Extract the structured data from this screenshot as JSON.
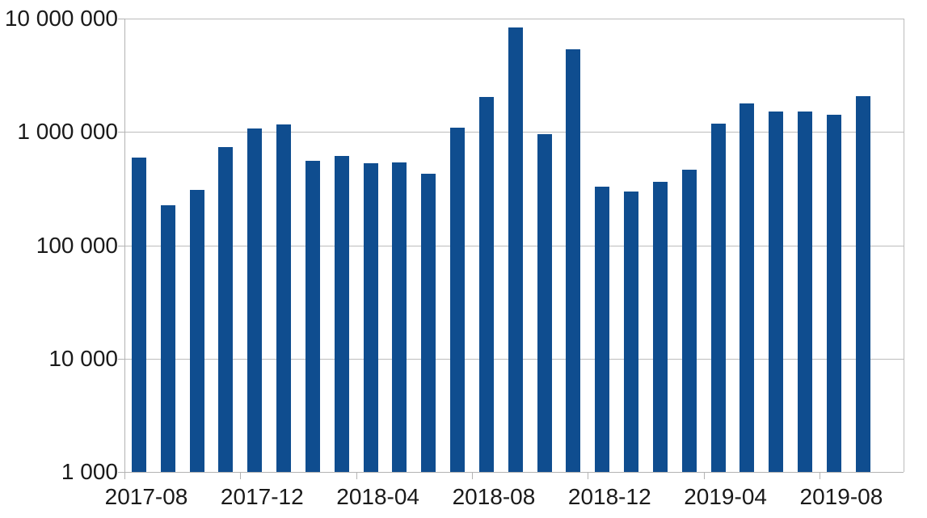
{
  "chart_data": {
    "type": "bar",
    "title": "",
    "xlabel": "",
    "ylabel": "",
    "yscale": "log",
    "ylim": [
      1000,
      10000000
    ],
    "grid": "horizontal",
    "legend": "none",
    "x": [
      "2017-08",
      "2017-09",
      "2017-10",
      "2017-11",
      "2017-12",
      "2018-01",
      "2018-02",
      "2018-03",
      "2018-04",
      "2018-05",
      "2018-06",
      "2018-07",
      "2018-08",
      "2018-09",
      "2018-10",
      "2018-11",
      "2018-12",
      "2019-01",
      "2019-02",
      "2019-03",
      "2019-04",
      "2019-05",
      "2019-06",
      "2019-07",
      "2019-08",
      "2019-09"
    ],
    "values": [
      590000,
      225000,
      310000,
      735000,
      1070000,
      1170000,
      560000,
      610000,
      530000,
      540000,
      430000,
      1090000,
      2020000,
      8300000,
      955000,
      5400000,
      330000,
      300000,
      365000,
      465000,
      1180000,
      1790000,
      1510000,
      1520000,
      1410000,
      2060000
    ],
    "x_tick_labels": [
      "2017-08",
      "2017-12",
      "2018-04",
      "2018-08",
      "2018-12",
      "2019-04",
      "2019-08"
    ],
    "x_tick_every": 4,
    "y_ticks": [
      {
        "value": 1000,
        "label": "1 000"
      },
      {
        "value": 10000,
        "label": "10 000"
      },
      {
        "value": 100000,
        "label": "100 000"
      },
      {
        "value": 1000000,
        "label": "1 000 000"
      },
      {
        "value": 10000000,
        "label": "10 000 000"
      }
    ],
    "colors": {
      "bar": "#0f4d8f",
      "grid": "#bcbcbc",
      "axis": "#b3b3b3",
      "text": "#1a1a1a",
      "background": "#ffffff"
    }
  }
}
